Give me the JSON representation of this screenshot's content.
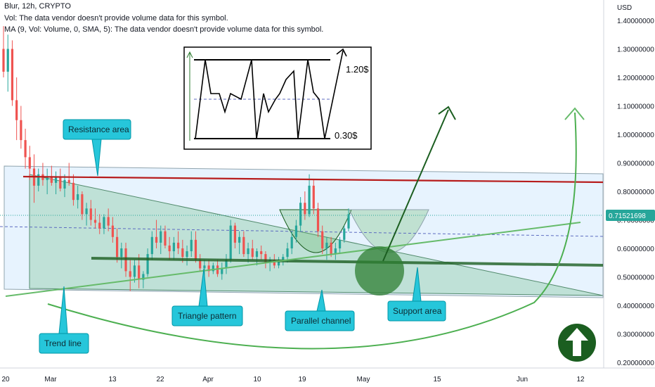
{
  "header": {
    "title": "Blur, 12h, CRYPTO",
    "vol_line": "Vol: The data vendor doesn't provide volume data for this symbol.",
    "ma_line": "MA (9, Vol: Volume, 0, SMA, 5): The data vendor doesn't provide volume data for this symbol."
  },
  "axis": {
    "currency": "USD",
    "price_ticks": [
      "1.40000000",
      "1.30000000",
      "1.20000000",
      "1.10000000",
      "1.00000000",
      "0.90000000",
      "0.80000000",
      "0.70000000",
      "0.60000000",
      "0.50000000",
      "0.40000000",
      "0.30000000",
      "0.20000000"
    ],
    "date_ticks": [
      "20",
      "Mar",
      "13",
      "22",
      "Apr",
      "10",
      "19",
      "May",
      "15",
      "Jun",
      "12"
    ],
    "current_price": "0.71521698"
  },
  "annotations": {
    "resistance": "Resistance area",
    "trend": "Trend line",
    "triangle": "Triangle pattern",
    "channel": "Parallel channel",
    "support": "Support area",
    "inset_top": "1.20$",
    "inset_bottom": "0.30$"
  },
  "colors": {
    "up": "#26a69a",
    "down": "#ef5350",
    "resistance_line": "#b71c1c",
    "support_line": "#1b5e20",
    "callout": "#26c6da",
    "triangle_fill": "#66bb6a",
    "price_badge": "#26a69a",
    "arrow_badge": "#1b5e20"
  },
  "chart_data": {
    "type": "candlestick",
    "symbol": "Blur, 12h, CRYPTO",
    "ylim": [
      0.2,
      1.4
    ],
    "ohlc": [
      [
        1.3,
        1.38,
        1.2,
        1.22
      ],
      [
        1.22,
        1.35,
        1.15,
        1.3
      ],
      [
        1.3,
        1.33,
        1.1,
        1.12
      ],
      [
        1.12,
        1.2,
        0.98,
        1.05
      ],
      [
        1.05,
        1.1,
        0.95,
        0.98
      ],
      [
        0.98,
        1.02,
        0.88,
        0.92
      ],
      [
        0.92,
        0.96,
        0.84,
        0.88
      ],
      [
        0.88,
        0.93,
        0.76,
        0.82
      ],
      [
        0.82,
        0.88,
        0.8,
        0.86
      ],
      [
        0.86,
        0.9,
        0.82,
        0.84
      ],
      [
        0.84,
        0.88,
        0.79,
        0.85
      ],
      [
        0.85,
        0.89,
        0.82,
        0.83
      ],
      [
        0.83,
        0.87,
        0.79,
        0.85
      ],
      [
        0.85,
        0.88,
        0.8,
        0.81
      ],
      [
        0.81,
        0.86,
        0.78,
        0.84
      ],
      [
        0.84,
        0.9,
        0.82,
        0.83
      ],
      [
        0.83,
        0.86,
        0.75,
        0.77
      ],
      [
        0.77,
        0.82,
        0.74,
        0.79
      ],
      [
        0.79,
        0.8,
        0.7,
        0.72
      ],
      [
        0.72,
        0.76,
        0.68,
        0.74
      ],
      [
        0.74,
        0.77,
        0.68,
        0.7
      ],
      [
        0.7,
        0.74,
        0.67,
        0.69
      ],
      [
        0.69,
        0.72,
        0.65,
        0.67
      ],
      [
        0.67,
        0.72,
        0.65,
        0.71
      ],
      [
        0.71,
        0.74,
        0.66,
        0.68
      ],
      [
        0.68,
        0.71,
        0.62,
        0.64
      ],
      [
        0.64,
        0.67,
        0.55,
        0.57
      ],
      [
        0.57,
        0.62,
        0.53,
        0.6
      ],
      [
        0.6,
        0.62,
        0.5,
        0.52
      ],
      [
        0.52,
        0.56,
        0.45,
        0.5
      ],
      [
        0.5,
        0.56,
        0.48,
        0.54
      ],
      [
        0.54,
        0.58,
        0.46,
        0.49
      ],
      [
        0.49,
        0.52,
        0.46,
        0.51
      ],
      [
        0.51,
        0.6,
        0.5,
        0.58
      ],
      [
        0.58,
        0.66,
        0.56,
        0.64
      ],
      [
        0.64,
        0.7,
        0.6,
        0.62
      ],
      [
        0.62,
        0.68,
        0.58,
        0.66
      ],
      [
        0.66,
        0.68,
        0.6,
        0.61
      ],
      [
        0.61,
        0.64,
        0.56,
        0.59
      ],
      [
        0.59,
        0.64,
        0.56,
        0.62
      ],
      [
        0.62,
        0.66,
        0.58,
        0.6
      ],
      [
        0.6,
        0.63,
        0.55,
        0.57
      ],
      [
        0.57,
        0.61,
        0.54,
        0.59
      ],
      [
        0.59,
        0.66,
        0.57,
        0.63
      ],
      [
        0.63,
        0.66,
        0.55,
        0.56
      ],
      [
        0.56,
        0.58,
        0.52,
        0.53
      ],
      [
        0.53,
        0.56,
        0.5,
        0.54
      ],
      [
        0.54,
        0.56,
        0.5,
        0.52
      ],
      [
        0.52,
        0.55,
        0.51,
        0.54
      ],
      [
        0.54,
        0.56,
        0.5,
        0.51
      ],
      [
        0.51,
        0.55,
        0.49,
        0.53
      ],
      [
        0.53,
        0.58,
        0.51,
        0.56
      ],
      [
        0.56,
        0.7,
        0.55,
        0.68
      ],
      [
        0.68,
        0.69,
        0.6,
        0.62
      ],
      [
        0.62,
        0.66,
        0.58,
        0.64
      ],
      [
        0.64,
        0.66,
        0.57,
        0.58
      ],
      [
        0.58,
        0.62,
        0.55,
        0.6
      ],
      [
        0.6,
        0.63,
        0.56,
        0.57
      ],
      [
        0.57,
        0.6,
        0.54,
        0.59
      ],
      [
        0.59,
        0.61,
        0.56,
        0.58
      ],
      [
        0.58,
        0.59,
        0.53,
        0.55
      ],
      [
        0.55,
        0.57,
        0.52,
        0.56
      ],
      [
        0.56,
        0.58,
        0.53,
        0.54
      ],
      [
        0.54,
        0.57,
        0.53,
        0.56
      ],
      [
        0.56,
        0.58,
        0.54,
        0.57
      ],
      [
        0.57,
        0.62,
        0.55,
        0.6
      ],
      [
        0.6,
        0.66,
        0.58,
        0.64
      ],
      [
        0.64,
        0.7,
        0.62,
        0.68
      ],
      [
        0.68,
        0.78,
        0.66,
        0.76
      ],
      [
        0.76,
        0.8,
        0.7,
        0.72
      ],
      [
        0.72,
        0.86,
        0.71,
        0.82
      ],
      [
        0.82,
        0.84,
        0.72,
        0.74
      ],
      [
        0.74,
        0.76,
        0.64,
        0.66
      ],
      [
        0.66,
        0.68,
        0.58,
        0.6
      ],
      [
        0.6,
        0.64,
        0.56,
        0.62
      ],
      [
        0.62,
        0.64,
        0.57,
        0.58
      ],
      [
        0.58,
        0.62,
        0.56,
        0.6
      ],
      [
        0.6,
        0.64,
        0.58,
        0.63
      ],
      [
        0.63,
        0.68,
        0.62,
        0.67
      ],
      [
        0.67,
        0.74,
        0.66,
        0.72
      ]
    ],
    "resistance_level": 0.83,
    "support_level": 0.55,
    "current_price": 0.71521698
  }
}
